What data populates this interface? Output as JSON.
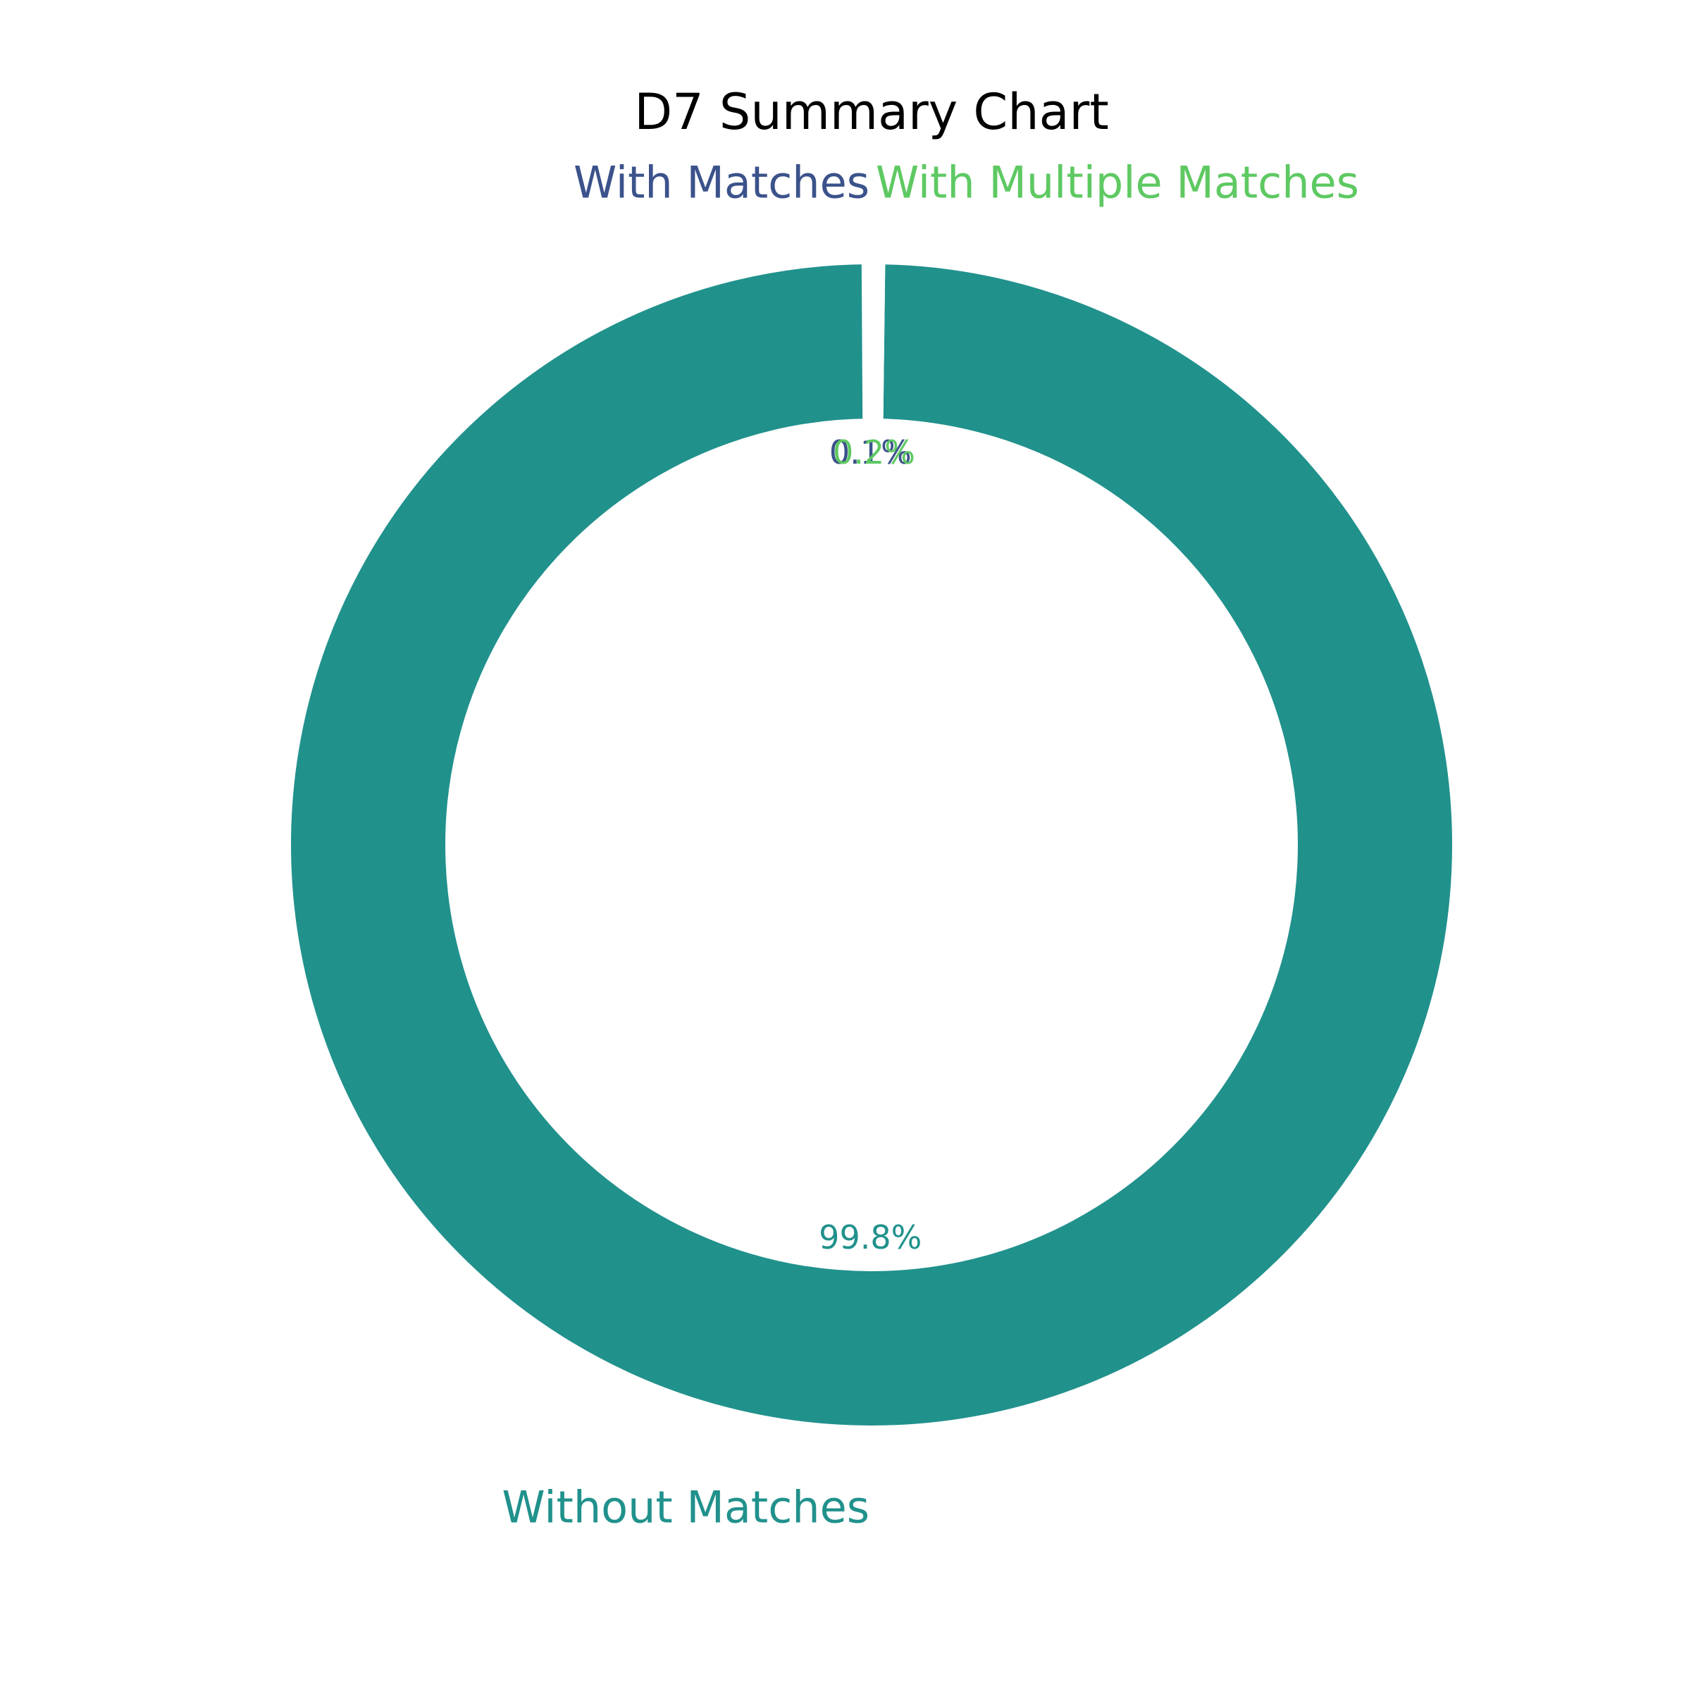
{
  "chart_data": {
    "type": "pie",
    "variant": "donut",
    "title": "D7 Summary Chart",
    "slices": [
      {
        "label": "With Matches",
        "value": 0.1,
        "pct_label": "0.1%",
        "color": "#3b528b"
      },
      {
        "label": "Without Matches",
        "value": 99.8,
        "pct_label": "99.8%",
        "color": "#21918c"
      },
      {
        "label": "With Multiple Matches",
        "value": 0.2,
        "pct_label": "0.2%",
        "color": "#5ec962"
      }
    ],
    "start_angle_deg": 90,
    "direction": "counterclockwise",
    "background": "#ffffff",
    "slice_edge_color": "#ffffff"
  }
}
